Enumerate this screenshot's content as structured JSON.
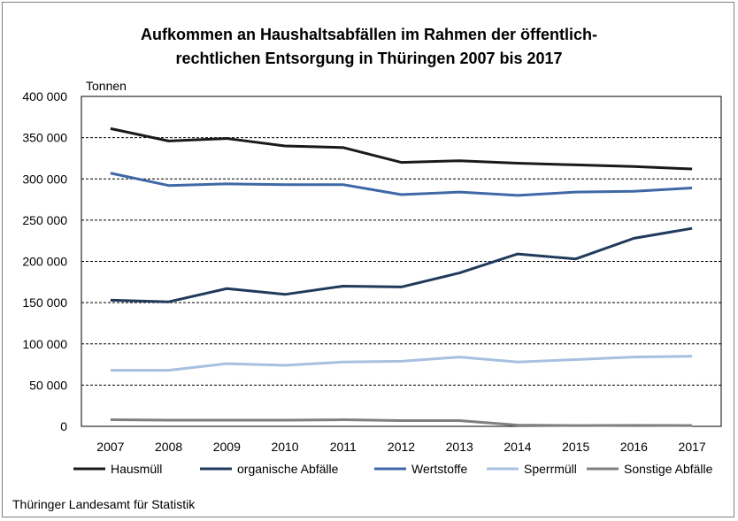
{
  "chart_data": {
    "type": "line",
    "title_line1": "Aufkommen an Haushaltsabfällen im Rahmen der öffentlich-",
    "title_line2": "rechtlichen Entsorgung in Thüringen 2007 bis 2017",
    "ylabel": "Tonnen",
    "xlabel": "",
    "ylim": [
      0,
      400000
    ],
    "y_ticks": [
      0,
      50000,
      100000,
      150000,
      200000,
      250000,
      300000,
      350000,
      400000
    ],
    "y_tick_labels": [
      "0",
      "50 000",
      "100 000",
      "150 000",
      "200 000",
      "250 000",
      "300 000",
      "350 000",
      "400 000"
    ],
    "grid": "horizontal dashed",
    "legend_position": "bottom",
    "categories": [
      "2007",
      "2008",
      "2009",
      "2010",
      "2011",
      "2012",
      "2013",
      "2014",
      "2015",
      "2016",
      "2017"
    ],
    "series": [
      {
        "name": "Hausmüll",
        "color": "#1a1a1a",
        "values": [
          361000,
          346000,
          349000,
          340000,
          338000,
          320000,
          322000,
          319000,
          317000,
          315000,
          312000
        ]
      },
      {
        "name": "organische Abfälle",
        "color": "#203a5c",
        "values": [
          153000,
          151000,
          167000,
          160000,
          170000,
          169000,
          186000,
          209000,
          203000,
          228000,
          240000
        ]
      },
      {
        "name": "Wertstoffe",
        "color": "#3e68a6",
        "values": [
          307000,
          292000,
          294000,
          293000,
          293000,
          281000,
          284000,
          280000,
          284000,
          285000,
          289000
        ]
      },
      {
        "name": "Sperrmüll",
        "color": "#a7c0e0",
        "values": [
          68000,
          68000,
          76000,
          74000,
          78000,
          79000,
          84000,
          78000,
          81000,
          84000,
          85000
        ]
      },
      {
        "name": "Sonstige Abfälle",
        "color": "#7f7f7f",
        "values": [
          8000,
          7500,
          7500,
          7500,
          8000,
          7000,
          7000,
          1500,
          1000,
          1200,
          1000
        ]
      }
    ]
  },
  "source": "Thüringer Landesamt für Statistik"
}
